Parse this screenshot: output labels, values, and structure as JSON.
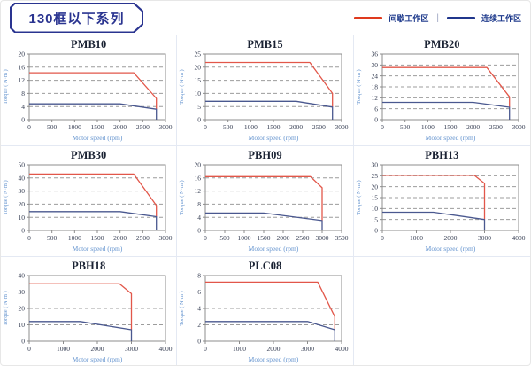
{
  "page": {
    "title": "130框以下系列"
  },
  "legend": {
    "items": [
      {
        "label": "间歇工作区",
        "color": "#DF3A1E"
      },
      {
        "label": "连续工作区",
        "color": "#20368C"
      }
    ],
    "separator": "|"
  },
  "colors": {
    "intermittent_line": "#E2574A",
    "continuous_line": "#4A588F",
    "grid": "#9C9C9C",
    "plot_border": "#8C8C8C",
    "tick_text": "#333B50",
    "axis_label": "#6292CE",
    "title_text": "#1A2233"
  },
  "chart_data": [
    {
      "type": "line",
      "title": "PMB10",
      "xlabel": "Motor speed (rpm)",
      "ylabel": "Torque ( N·m )",
      "xlim": [
        0,
        3000
      ],
      "xstep": 500,
      "ylim": [
        0,
        20
      ],
      "ystep": 4,
      "grid": "horizontal-dashed",
      "legend_position": "none",
      "series": [
        {
          "name": "间歇工作区",
          "points": [
            [
              0,
              14.3
            ],
            [
              2300,
              14.3
            ],
            [
              2800,
              6.5
            ],
            [
              2800,
              3.2
            ]
          ]
        },
        {
          "name": "连续工作区",
          "points": [
            [
              0,
              4.8
            ],
            [
              2000,
              4.8
            ],
            [
              2800,
              3.2
            ],
            [
              2800,
              0
            ]
          ]
        }
      ]
    },
    {
      "type": "line",
      "title": "PMB15",
      "xlabel": "Motor speed (rpm)",
      "ylabel": "Torque ( N·m )",
      "xlim": [
        0,
        3000
      ],
      "xstep": 500,
      "ylim": [
        0,
        25
      ],
      "ystep": 5,
      "grid": "horizontal-dashed",
      "legend_position": "none",
      "series": [
        {
          "name": "间歇工作区",
          "points": [
            [
              0,
              21.8
            ],
            [
              2300,
              21.8
            ],
            [
              2800,
              10
            ],
            [
              2800,
              4.8
            ]
          ]
        },
        {
          "name": "连续工作区",
          "points": [
            [
              0,
              7
            ],
            [
              2000,
              7
            ],
            [
              2800,
              4.8
            ],
            [
              2800,
              0
            ]
          ]
        }
      ]
    },
    {
      "type": "line",
      "title": "PMB20",
      "xlabel": "Motor speed (rpm)",
      "ylabel": "Torque ( N·m )",
      "xlim": [
        0,
        3000
      ],
      "xstep": 500,
      "ylim": [
        0,
        36
      ],
      "ystep": 6,
      "grid": "horizontal-dashed",
      "legend_position": "none",
      "series": [
        {
          "name": "间歇工作区",
          "points": [
            [
              0,
              28.6
            ],
            [
              2300,
              28.6
            ],
            [
              2800,
              12.5
            ],
            [
              2800,
              6.8
            ]
          ]
        },
        {
          "name": "连续工作区",
          "points": [
            [
              0,
              9.5
            ],
            [
              2000,
              9.5
            ],
            [
              2800,
              6.8
            ],
            [
              2800,
              0
            ]
          ]
        }
      ]
    },
    {
      "type": "line",
      "title": "PMB30",
      "xlabel": "Motor speed (rpm)",
      "ylabel": "Torque ( N·m )",
      "xlim": [
        0,
        3000
      ],
      "xstep": 500,
      "ylim": [
        0,
        50
      ],
      "ystep": 10,
      "grid": "horizontal-dashed",
      "legend_position": "none",
      "series": [
        {
          "name": "间歇工作区",
          "points": [
            [
              0,
              43
            ],
            [
              2300,
              43
            ],
            [
              2800,
              19
            ],
            [
              2800,
              10.5
            ]
          ]
        },
        {
          "name": "连续工作区",
          "points": [
            [
              0,
              14.3
            ],
            [
              2000,
              14.3
            ],
            [
              2800,
              10.5
            ],
            [
              2800,
              0
            ]
          ]
        }
      ]
    },
    {
      "type": "line",
      "title": "PBH09",
      "xlabel": "Motor speed (rpm)",
      "ylabel": "Torque ( N·m )",
      "xlim": [
        0,
        3500
      ],
      "xstep": 500,
      "ylim": [
        0,
        20
      ],
      "ystep": 4,
      "grid": "horizontal-dashed",
      "legend_position": "none",
      "series": [
        {
          "name": "间歇工作区",
          "points": [
            [
              0,
              16.4
            ],
            [
              2700,
              16.4
            ],
            [
              3000,
              13
            ],
            [
              3000,
              3
            ]
          ]
        },
        {
          "name": "连续工作区",
          "points": [
            [
              0,
              5.3
            ],
            [
              1500,
              5.3
            ],
            [
              3000,
              3
            ],
            [
              3000,
              0
            ]
          ]
        }
      ]
    },
    {
      "type": "line",
      "title": "PBH13",
      "xlabel": "Motor speed (rpm)",
      "ylabel": "Torque ( N·m )",
      "xlim": [
        0,
        4000
      ],
      "xstep": 1000,
      "ylim": [
        0,
        30
      ],
      "ystep": 5,
      "grid": "horizontal-dashed",
      "legend_position": "none",
      "series": [
        {
          "name": "间歇工作区",
          "points": [
            [
              0,
              25.2
            ],
            [
              2700,
              25.2
            ],
            [
              3000,
              21.5
            ],
            [
              3000,
              5
            ]
          ]
        },
        {
          "name": "连续工作区",
          "points": [
            [
              0,
              8.3
            ],
            [
              1500,
              8.3
            ],
            [
              3000,
              5
            ],
            [
              3000,
              0
            ]
          ]
        }
      ]
    },
    {
      "type": "line",
      "title": "PBH18",
      "xlabel": "Motor speed (rpm)",
      "ylabel": "Torque ( N·m )",
      "xlim": [
        0,
        4000
      ],
      "xstep": 1000,
      "ylim": [
        0,
        40
      ],
      "ystep": 10,
      "grid": "horizontal-dashed",
      "legend_position": "none",
      "series": [
        {
          "name": "间歇工作区",
          "points": [
            [
              0,
              35
            ],
            [
              2650,
              35
            ],
            [
              3000,
              29
            ],
            [
              3000,
              7
            ]
          ]
        },
        {
          "name": "连续工作区",
          "points": [
            [
              0,
              12
            ],
            [
              1500,
              12
            ],
            [
              3000,
              7
            ],
            [
              3000,
              0
            ]
          ]
        }
      ]
    },
    {
      "type": "line",
      "title": "PLC08",
      "xlabel": "Motor speed (rpm)",
      "ylabel": "Torque ( N·m )",
      "xlim": [
        0,
        4000
      ],
      "xstep": 1000,
      "ylim": [
        0,
        8
      ],
      "ystep": 2,
      "grid": "horizontal-dashed",
      "legend_position": "none",
      "series": [
        {
          "name": "间歇工作区",
          "points": [
            [
              0,
              7.2
            ],
            [
              3300,
              7.2
            ],
            [
              3800,
              3
            ],
            [
              3800,
              1.4
            ]
          ]
        },
        {
          "name": "连续工作区",
          "points": [
            [
              0,
              2.4
            ],
            [
              3000,
              2.4
            ],
            [
              3800,
              1.4
            ],
            [
              3800,
              0
            ]
          ]
        }
      ]
    }
  ]
}
